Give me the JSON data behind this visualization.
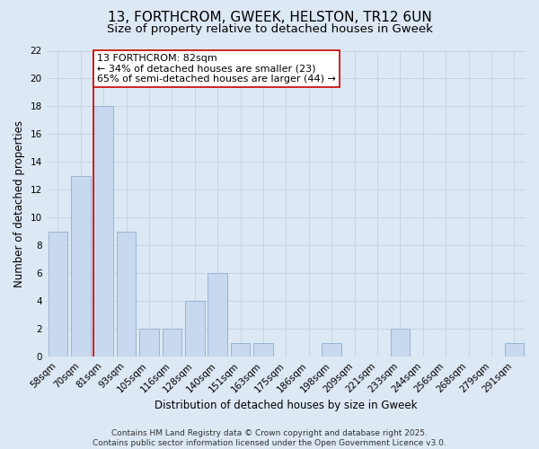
{
  "title": "13, FORTHCROM, GWEEK, HELSTON, TR12 6UN",
  "subtitle": "Size of property relative to detached houses in Gweek",
  "xlabel": "Distribution of detached houses by size in Gweek",
  "ylabel": "Number of detached properties",
  "categories": [
    "58sqm",
    "70sqm",
    "81sqm",
    "93sqm",
    "105sqm",
    "116sqm",
    "128sqm",
    "140sqm",
    "151sqm",
    "163sqm",
    "175sqm",
    "186sqm",
    "198sqm",
    "209sqm",
    "221sqm",
    "233sqm",
    "244sqm",
    "256sqm",
    "268sqm",
    "279sqm",
    "291sqm"
  ],
  "values": [
    9,
    13,
    18,
    9,
    2,
    2,
    4,
    6,
    1,
    1,
    0,
    0,
    1,
    0,
    0,
    2,
    0,
    0,
    0,
    0,
    1
  ],
  "bar_color": "#c8d8ee",
  "bar_edge_color": "#9ab4d4",
  "vline_x_index": 2,
  "vline_color": "#cc0000",
  "annotation_text": "13 FORTHCROM: 82sqm\n← 34% of detached houses are smaller (23)\n65% of semi-detached houses are larger (44) →",
  "annotation_box_color": "#ffffff",
  "annotation_box_edge": "#cc0000",
  "ylim": [
    0,
    22
  ],
  "yticks": [
    0,
    2,
    4,
    6,
    8,
    10,
    12,
    14,
    16,
    18,
    20,
    22
  ],
  "grid_color": "#c8d4e4",
  "background_color": "#dce8f4",
  "plot_bg_color": "#dce8f4",
  "footer_text": "Contains HM Land Registry data © Crown copyright and database right 2025.\nContains public sector information licensed under the Open Government Licence v3.0.",
  "title_fontsize": 11,
  "subtitle_fontsize": 9.5,
  "axis_label_fontsize": 8.5,
  "tick_fontsize": 7.5,
  "annotation_fontsize": 8,
  "footer_fontsize": 6.5
}
